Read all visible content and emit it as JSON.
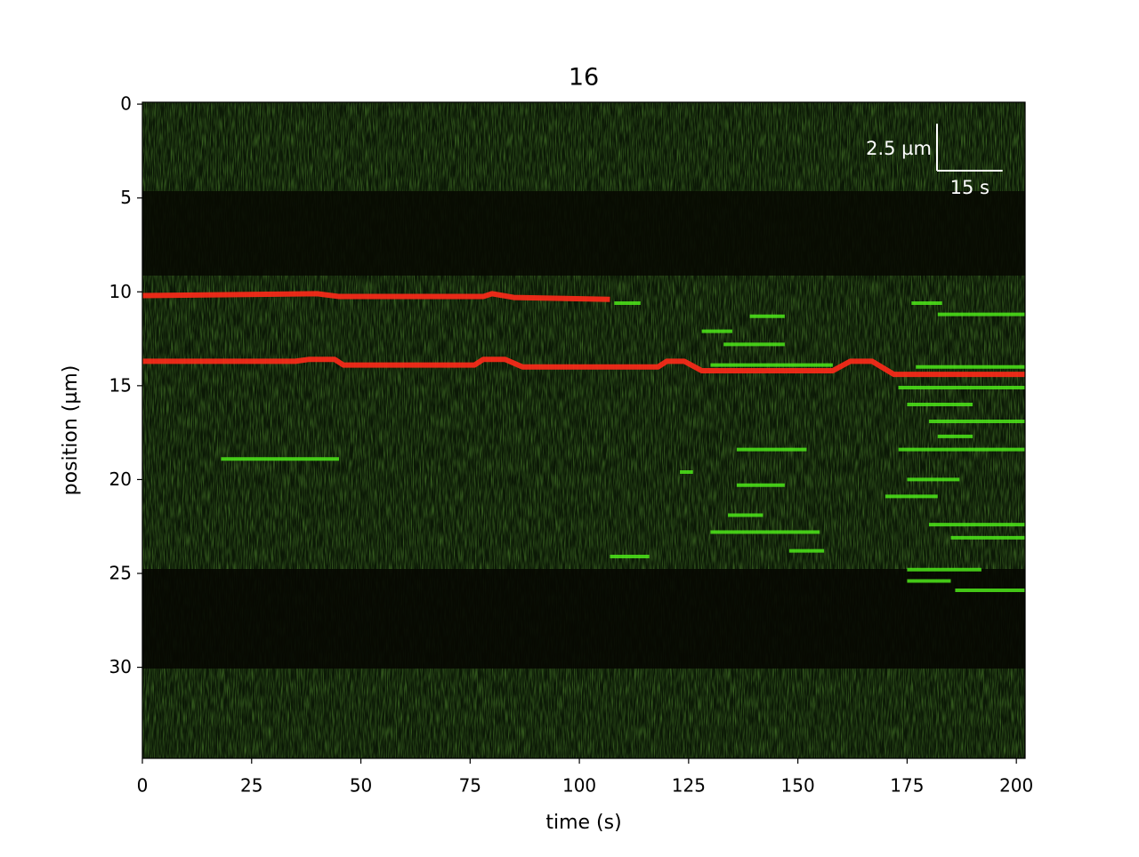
{
  "chart_data": {
    "type": "kymograph",
    "title": "16",
    "x_label": "time (s)",
    "y_label": "position (µm)",
    "xlim": [
      0,
      202
    ],
    "ylim": [
      34.85,
      -0.1
    ],
    "xticks": [
      0,
      25,
      50,
      75,
      100,
      125,
      150,
      175,
      200
    ],
    "yticks": [
      0,
      5,
      10,
      15,
      20,
      25,
      30
    ],
    "scalebar": {
      "y_length": 2.5,
      "y_label": "2.5 µm",
      "x_length": 15,
      "x_label": "15 s"
    },
    "red_traces": {
      "color": "#ff2a1a",
      "traces": [
        {
          "x": [
            0,
            40,
            45,
            78,
            80,
            85,
            107
          ],
          "y": [
            10.2,
            10.1,
            10.25,
            10.25,
            10.1,
            10.3,
            10.4
          ]
        },
        {
          "x": [
            0,
            35,
            38,
            44,
            46,
            76,
            78,
            83,
            87,
            118,
            120,
            124,
            128,
            158,
            162,
            167,
            172,
            202
          ],
          "y": [
            13.7,
            13.7,
            13.6,
            13.6,
            13.9,
            13.9,
            13.6,
            13.6,
            14.0,
            14.0,
            13.7,
            13.7,
            14.2,
            14.2,
            13.7,
            13.7,
            14.4,
            14.4
          ]
        }
      ]
    },
    "green_tracks": {
      "color": "#4ee81a",
      "tracks": [
        {
          "x": [
            18,
            45
          ],
          "y": [
            18.9,
            18.9
          ]
        },
        {
          "x": [
            108,
            114
          ],
          "y": [
            10.6,
            10.6
          ]
        },
        {
          "x": [
            107,
            116
          ],
          "y": [
            24.1,
            24.1
          ]
        },
        {
          "x": [
            128,
            135
          ],
          "y": [
            12.1,
            12.1
          ]
        },
        {
          "x": [
            133,
            147
          ],
          "y": [
            12.8,
            12.8
          ]
        },
        {
          "x": [
            139,
            147
          ],
          "y": [
            11.3,
            11.3
          ]
        },
        {
          "x": [
            130,
            158
          ],
          "y": [
            13.9,
            13.9
          ]
        },
        {
          "x": [
            136,
            152
          ],
          "y": [
            18.4,
            18.4
          ]
        },
        {
          "x": [
            136,
            147
          ],
          "y": [
            20.3,
            20.3
          ]
        },
        {
          "x": [
            134,
            142
          ],
          "y": [
            21.9,
            21.9
          ]
        },
        {
          "x": [
            130,
            155
          ],
          "y": [
            22.8,
            22.8
          ]
        },
        {
          "x": [
            148,
            156
          ],
          "y": [
            23.8,
            23.8
          ]
        },
        {
          "x": [
            123,
            126
          ],
          "y": [
            19.6,
            19.6
          ]
        },
        {
          "x": [
            176,
            183
          ],
          "y": [
            10.6,
            10.6
          ]
        },
        {
          "x": [
            182,
            202
          ],
          "y": [
            11.2,
            11.2
          ]
        },
        {
          "x": [
            177,
            202
          ],
          "y": [
            14.0,
            14.0
          ]
        },
        {
          "x": [
            173,
            202
          ],
          "y": [
            15.1,
            15.1
          ]
        },
        {
          "x": [
            175,
            190
          ],
          "y": [
            16.0,
            16.0
          ]
        },
        {
          "x": [
            180,
            202
          ],
          "y": [
            16.9,
            16.9
          ]
        },
        {
          "x": [
            182,
            190
          ],
          "y": [
            17.7,
            17.7
          ]
        },
        {
          "x": [
            173,
            202
          ],
          "y": [
            18.4,
            18.4
          ]
        },
        {
          "x": [
            175,
            187
          ],
          "y": [
            20.0,
            20.0
          ]
        },
        {
          "x": [
            170,
            182
          ],
          "y": [
            20.9,
            20.9
          ]
        },
        {
          "x": [
            180,
            202
          ],
          "y": [
            22.4,
            22.4
          ]
        },
        {
          "x": [
            185,
            202
          ],
          "y": [
            23.1,
            23.1
          ]
        },
        {
          "x": [
            175,
            192
          ],
          "y": [
            24.8,
            24.8
          ]
        },
        {
          "x": [
            175,
            185
          ],
          "y": [
            25.4,
            25.4
          ]
        },
        {
          "x": [
            186,
            202
          ],
          "y": [
            25.9,
            25.9
          ]
        }
      ]
    }
  }
}
